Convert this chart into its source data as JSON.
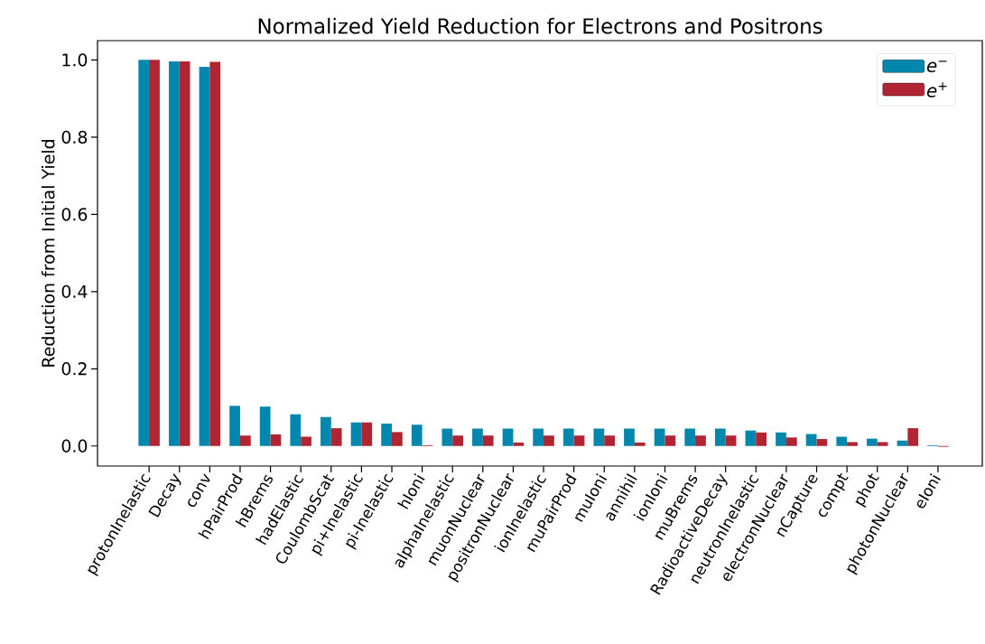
{
  "chart_data": {
    "type": "bar",
    "title": "Normalized Yield Reduction for Electrons and Positrons",
    "ylabel": "Reduction from Initial Yield",
    "categories": [
      "protonInelastic",
      "Decay",
      "conv",
      "hPairProd",
      "hBrems",
      "hadElastic",
      "CoulombScat",
      "pi+Inelastic",
      "pi-Inelastic",
      "hIoni",
      "alphaInelastic",
      "muonNuclear",
      "positronNuclear",
      "ionInelastic",
      "muPairProd",
      "muIoni",
      "annihil",
      "ionIoni",
      "muBrems",
      "RadioactiveDecay",
      "neutronInelastic",
      "electronNuclear",
      "nCapture",
      "compt",
      "phot",
      "photonNuclear",
      "eIoni"
    ],
    "series": [
      {
        "name": "*e*$^{−}$",
        "color": "#0087ad",
        "values": [
          1.0,
          0.996,
          0.982,
          0.104,
          0.102,
          0.082,
          0.075,
          0.061,
          0.058,
          0.055,
          0.045,
          0.045,
          0.045,
          0.045,
          0.045,
          0.045,
          0.045,
          0.045,
          0.045,
          0.045,
          0.04,
          0.035,
          0.031,
          0.024,
          0.019,
          0.014,
          0.002
        ]
      },
      {
        "name": "*e*$^{+}$",
        "color": "#b02531",
        "values": [
          1.0,
          0.996,
          0.995,
          0.027,
          0.03,
          0.024,
          0.046,
          0.061,
          0.036,
          0.002,
          0.027,
          0.027,
          0.009,
          0.027,
          0.027,
          0.027,
          0.009,
          0.027,
          0.027,
          0.027,
          0.035,
          0.022,
          0.018,
          0.01,
          0.01,
          0.046,
          -0.002
        ]
      }
    ],
    "ylim": [
      -0.052,
      1.05
    ],
    "yticks": [
      {
        "value": 0,
        "label": "0.0"
      },
      0.2,
      0.4,
      0.6,
      0.8,
      {
        "value": 1,
        "label": "1.0"
      }
    ],
    "grid": false,
    "legend": "top right"
  }
}
